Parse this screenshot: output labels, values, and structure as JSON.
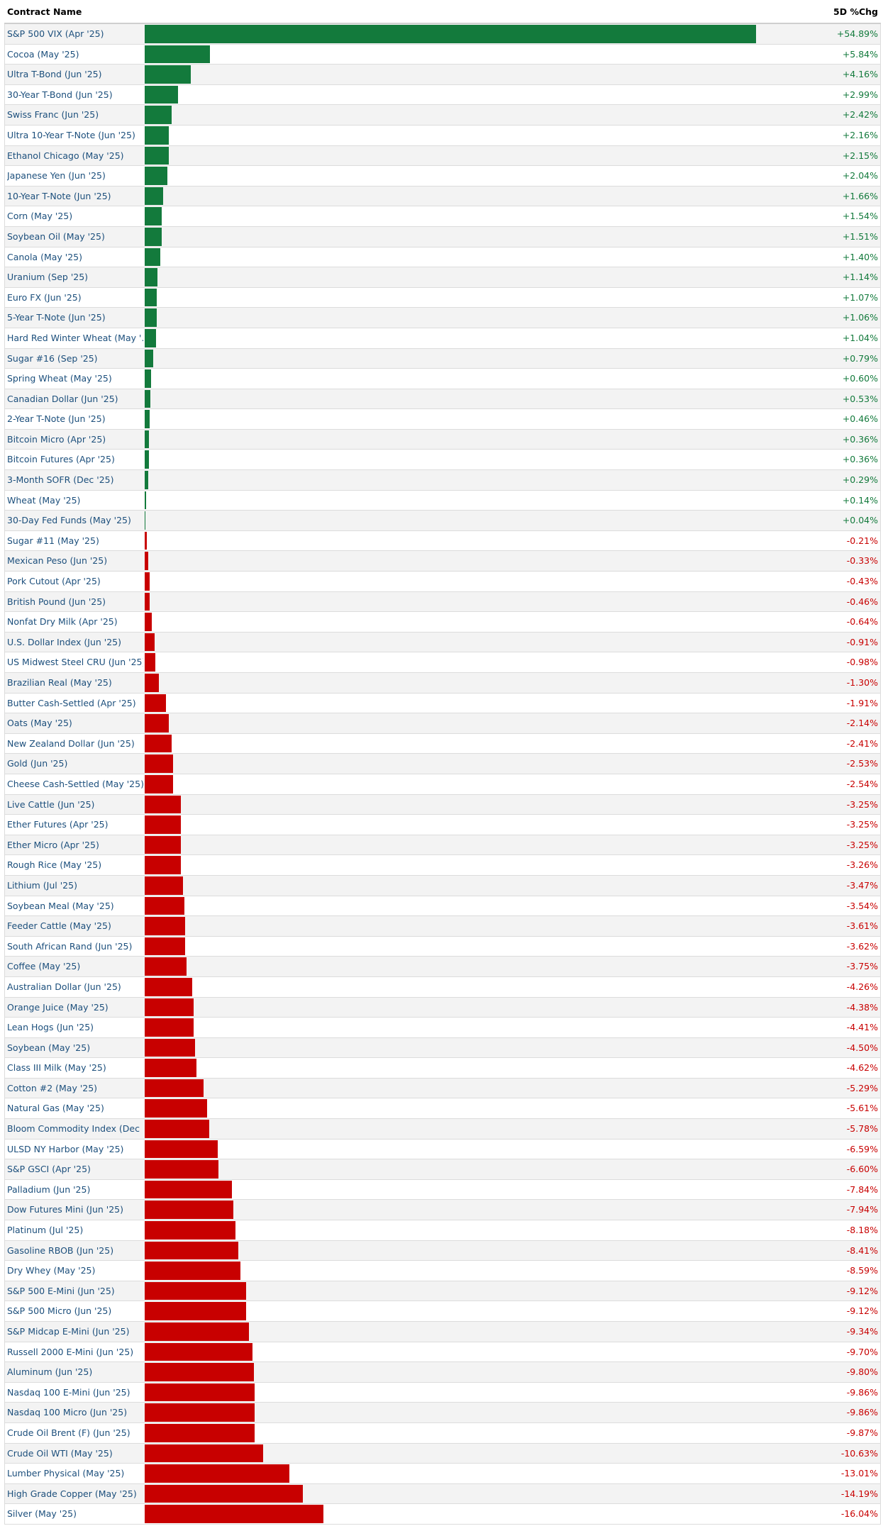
{
  "chart_data": {
    "type": "bar",
    "orientation": "horizontal",
    "header": {
      "name": "Contract Name",
      "change": "5D %Chg"
    },
    "positive_color": "#137a3c",
    "negative_color": "#c80000",
    "categories": [
      "S&P 500 VIX (Apr '25)",
      "Cocoa (May '25)",
      "Ultra T-Bond (Jun '25)",
      "30-Year T-Bond (Jun '25)",
      "Swiss Franc (Jun '25)",
      "Ultra 10-Year T-Note (Jun '25)",
      "Ethanol Chicago (May '25)",
      "Japanese Yen (Jun '25)",
      "10-Year T-Note (Jun '25)",
      "Corn (May '25)",
      "Soybean Oil (May '25)",
      "Canola (May '25)",
      "Uranium (Sep '25)",
      "Euro FX (Jun '25)",
      "5-Year T-Note (Jun '25)",
      "Hard Red Winter Wheat (May '…",
      "Sugar #16 (Sep '25)",
      "Spring Wheat (May '25)",
      "Canadian Dollar (Jun '25)",
      "2-Year T-Note (Jun '25)",
      "Bitcoin Micro (Apr '25)",
      "Bitcoin Futures (Apr '25)",
      "3-Month SOFR (Dec '25)",
      "Wheat (May '25)",
      "30-Day Fed Funds (May '25)",
      "Sugar #11 (May '25)",
      "Mexican Peso (Jun '25)",
      "Pork Cutout (Apr '25)",
      "British Pound (Jun '25)",
      "Nonfat Dry Milk (Apr '25)",
      "U.S. Dollar Index (Jun '25)",
      "US Midwest Steel CRU (Jun '25)",
      "Brazilian Real (May '25)",
      "Butter Cash-Settled (Apr '25)",
      "Oats (May '25)",
      "New Zealand Dollar (Jun '25)",
      "Gold (Jun '25)",
      "Cheese Cash-Settled (May '25)",
      "Live Cattle (Jun '25)",
      "Ether Futures (Apr '25)",
      "Ether Micro (Apr '25)",
      "Rough Rice (May '25)",
      "Lithium (Jul '25)",
      "Soybean Meal (May '25)",
      "Feeder Cattle (May '25)",
      "South African Rand (Jun '25)",
      "Coffee (May '25)",
      "Australian Dollar (Jun '25)",
      "Orange Juice (May '25)",
      "Lean Hogs (Jun '25)",
      "Soybean (May '25)",
      "Class III Milk (May '25)",
      "Cotton #2 (May '25)",
      "Natural Gas (May '25)",
      "Bloom Commodity Index (Dec '…",
      "ULSD NY Harbor (May '25)",
      "S&P GSCI (Apr '25)",
      "Palladium (Jun '25)",
      "Dow Futures Mini (Jun '25)",
      "Platinum (Jul '25)",
      "Gasoline RBOB (Jun '25)",
      "Dry Whey (May '25)",
      "S&P 500 E-Mini (Jun '25)",
      "S&P 500 Micro (Jun '25)",
      "S&P Midcap E-Mini (Jun '25)",
      "Russell 2000 E-Mini (Jun '25)",
      "Aluminum (Jun '25)",
      "Nasdaq 100 E-Mini (Jun '25)",
      "Nasdaq 100 Micro (Jun '25)",
      "Crude Oil Brent (F) (Jun '25)",
      "Crude Oil WTI (May '25)",
      "Lumber Physical (May '25)",
      "High Grade Copper (May '25)",
      "Silver (May '25)"
    ],
    "values": [
      54.89,
      5.84,
      4.16,
      2.99,
      2.42,
      2.16,
      2.15,
      2.04,
      1.66,
      1.54,
      1.51,
      1.4,
      1.14,
      1.07,
      1.06,
      1.04,
      0.79,
      0.6,
      0.53,
      0.46,
      0.36,
      0.36,
      0.29,
      0.14,
      0.04,
      -0.21,
      -0.33,
      -0.43,
      -0.46,
      -0.64,
      -0.91,
      -0.98,
      -1.3,
      -1.91,
      -2.14,
      -2.41,
      -2.53,
      -2.54,
      -3.25,
      -3.25,
      -3.25,
      -3.26,
      -3.47,
      -3.54,
      -3.61,
      -3.62,
      -3.75,
      -4.26,
      -4.38,
      -4.41,
      -4.5,
      -4.62,
      -5.29,
      -5.61,
      -5.78,
      -6.59,
      -6.6,
      -7.84,
      -7.94,
      -8.18,
      -8.41,
      -8.59,
      -9.12,
      -9.12,
      -9.34,
      -9.7,
      -9.8,
      -9.86,
      -9.86,
      -9.87,
      -10.63,
      -13.01,
      -14.19,
      -16.04
    ],
    "value_labels": [
      "+54.89%",
      "+5.84%",
      "+4.16%",
      "+2.99%",
      "+2.42%",
      "+2.16%",
      "+2.15%",
      "+2.04%",
      "+1.66%",
      "+1.54%",
      "+1.51%",
      "+1.40%",
      "+1.14%",
      "+1.07%",
      "+1.06%",
      "+1.04%",
      "+0.79%",
      "+0.60%",
      "+0.53%",
      "+0.46%",
      "+0.36%",
      "+0.36%",
      "+0.29%",
      "+0.14%",
      "+0.04%",
      "-0.21%",
      "-0.33%",
      "-0.43%",
      "-0.46%",
      "-0.64%",
      "-0.91%",
      "-0.98%",
      "-1.30%",
      "-1.91%",
      "-2.14%",
      "-2.41%",
      "-2.53%",
      "-2.54%",
      "-3.25%",
      "-3.25%",
      "-3.25%",
      "-3.26%",
      "-3.47%",
      "-3.54%",
      "-3.61%",
      "-3.62%",
      "-3.75%",
      "-4.26%",
      "-4.38%",
      "-4.41%",
      "-4.50%",
      "-4.62%",
      "-5.29%",
      "-5.61%",
      "-5.78%",
      "-6.59%",
      "-6.60%",
      "-7.84%",
      "-7.94%",
      "-8.18%",
      "-8.41%",
      "-8.59%",
      "-9.12%",
      "-9.12%",
      "-9.34%",
      "-9.70%",
      "-9.80%",
      "-9.86%",
      "-9.86%",
      "-9.87%",
      "-10.63%",
      "-13.01%",
      "-14.19%",
      "-16.04%"
    ]
  }
}
